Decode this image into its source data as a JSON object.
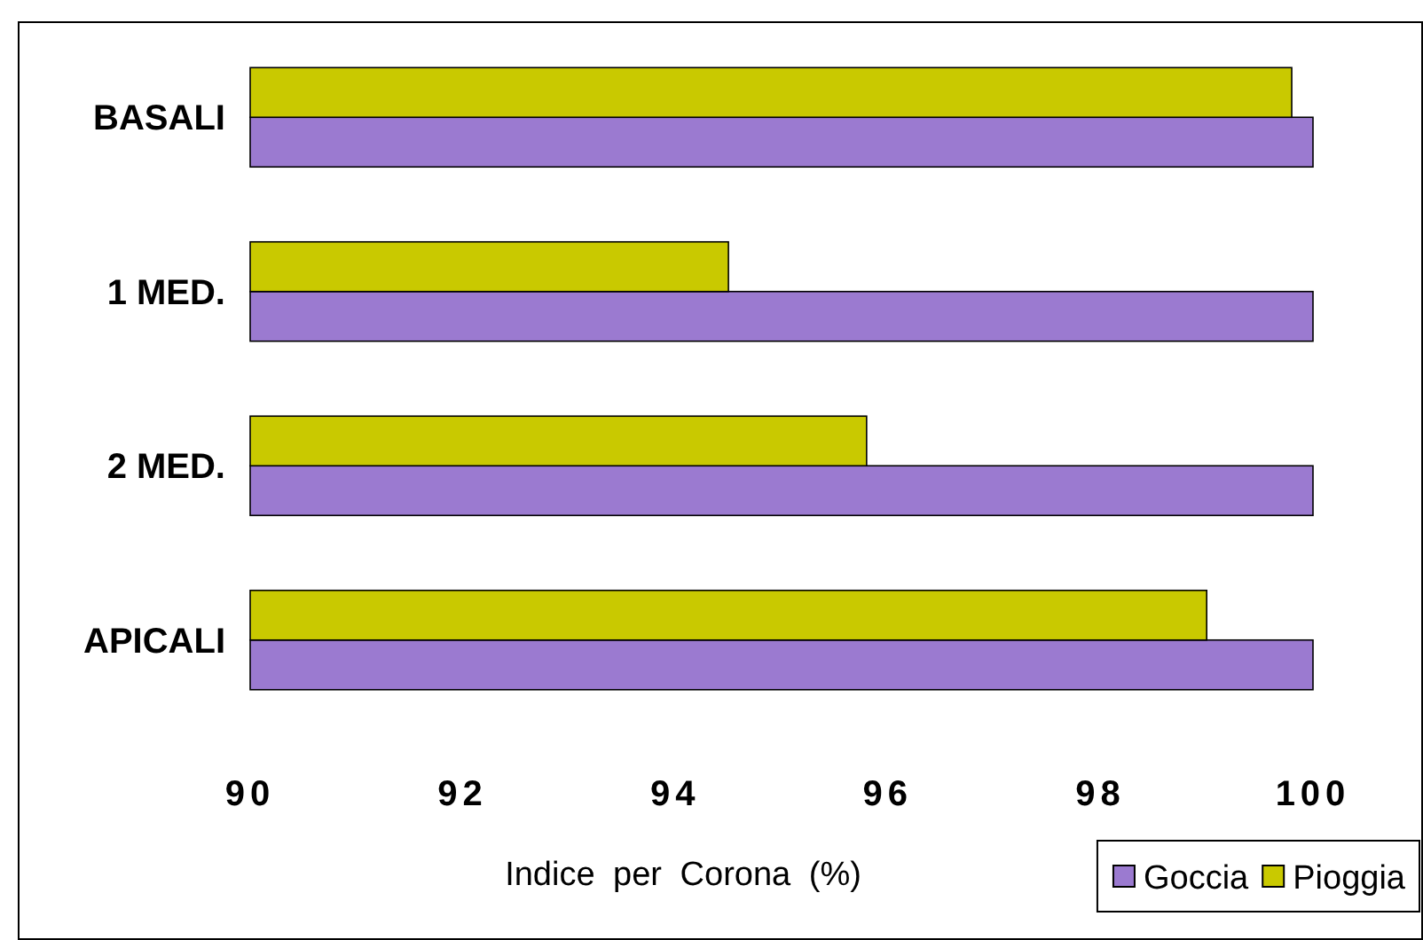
{
  "chart_data": {
    "type": "bar",
    "orientation": "horizontal",
    "categories": [
      "BASALI",
      "1 MED.",
      "2 MED.",
      "APICALI"
    ],
    "series": [
      {
        "name": "Goccia",
        "color": "#9b7ad0",
        "values": [
          100,
          100,
          100,
          100
        ]
      },
      {
        "name": "Pioggia",
        "color": "#c9c900",
        "values": [
          99.8,
          94.5,
          95.8,
          99.0
        ]
      }
    ],
    "xlabel": "Indice per Corona (%)",
    "xlim": [
      90,
      100
    ],
    "xticks": [
      90,
      92,
      94,
      96,
      98,
      100
    ],
    "grid": false,
    "legend": "bottom right"
  }
}
